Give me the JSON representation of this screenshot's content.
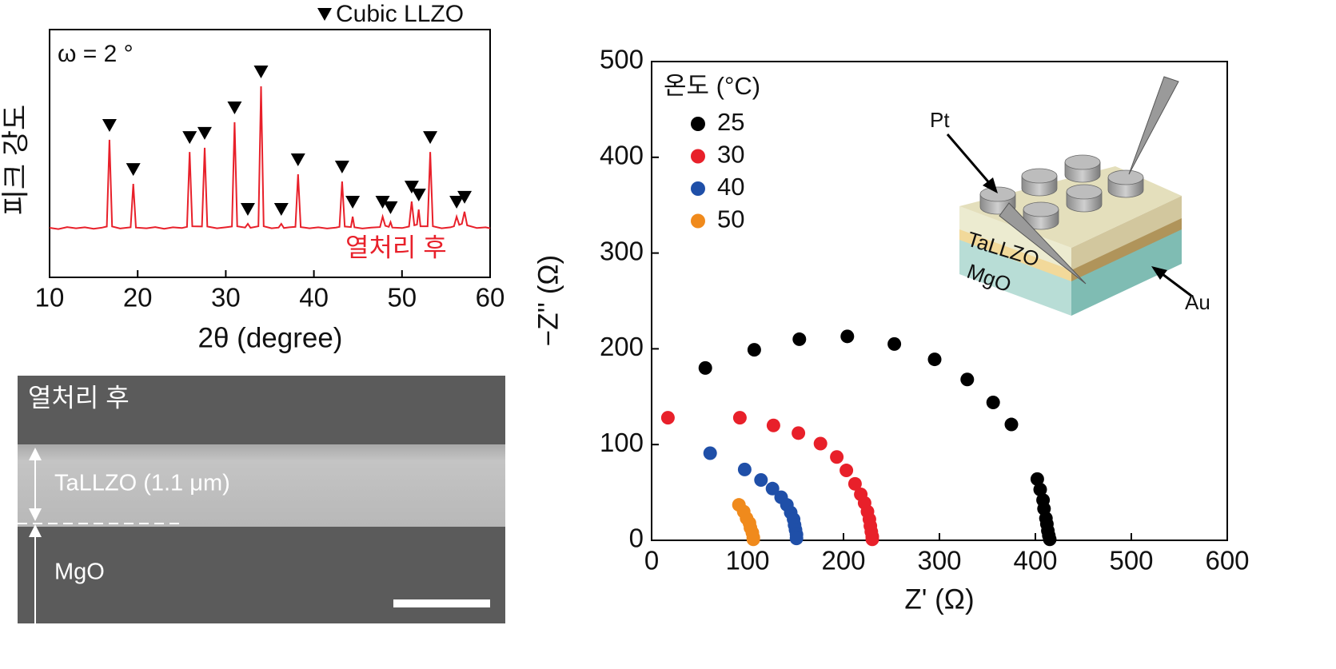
{
  "chart_data": [
    {
      "type": "line",
      "x_label": "2θ (degree)",
      "y_label": "피크 강도",
      "legend": "Cubic LLZO",
      "annotations": [
        "ω = 2 °",
        "열처리 후"
      ],
      "color": "#e8202a",
      "xlim": [
        10,
        60
      ],
      "xticks": [
        10,
        20,
        30,
        40,
        50,
        60
      ],
      "ylim": [
        0,
        100
      ],
      "x": [
        10,
        11,
        12,
        13,
        14,
        15,
        16,
        16.5,
        16.8,
        17.1,
        18,
        19.2,
        19.5,
        19.8,
        21,
        22,
        23,
        24,
        25,
        25.6,
        25.9,
        26.2,
        27.3,
        27.6,
        27.9,
        29,
        30,
        30.7,
        31.0,
        31.3,
        32.2,
        32.5,
        32.8,
        33.7,
        34.0,
        34.3,
        35.2,
        36.0,
        36.3,
        36.6,
        37.2,
        37.9,
        38.2,
        38.5,
        39.5,
        40.5,
        41.5,
        42.5,
        42.9,
        43.2,
        43.5,
        44.2,
        44.4,
        44.6,
        45.5,
        46.5,
        47.5,
        47.8,
        48.1,
        48.5,
        48.7,
        48.9,
        50,
        50.8,
        51.1,
        51.4,
        51.7,
        51.9,
        52.1,
        52.9,
        53.2,
        53.5,
        54.5,
        55.5,
        55.9,
        56.2,
        56.5,
        56.8,
        57.1,
        57.4,
        58.5,
        59.5,
        60
      ],
      "values": [
        20,
        19.5,
        20.3,
        19.8,
        20.2,
        19.6,
        20.1,
        20.5,
        55.5,
        20.5,
        19.7,
        20.2,
        37.7,
        20.1,
        19.8,
        20.3,
        19.6,
        20.2,
        19.9,
        20.4,
        50.6,
        20.6,
        20.5,
        52.3,
        20.5,
        19.8,
        20.2,
        20.5,
        62.6,
        20.6,
        20.1,
        21.6,
        20,
        20.6,
        77.1,
        20.6,
        19.8,
        20.1,
        21.6,
        19.9,
        20.2,
        20.4,
        41.6,
        20.3,
        19.8,
        20.2,
        19.7,
        20.1,
        20.4,
        38.7,
        20.5,
        20.3,
        24.5,
        20.2,
        19.7,
        20.1,
        20.3,
        24.5,
        20.8,
        20.4,
        22.3,
        20.1,
        19.9,
        20.5,
        30.6,
        21,
        21.3,
        27.4,
        20.6,
        20.6,
        50.6,
        20.6,
        19.8,
        20.2,
        20.6,
        24.5,
        21.2,
        21.6,
        26.5,
        21,
        19.9,
        20.2,
        19.8
      ],
      "peak_markers": [
        16.8,
        19.5,
        25.9,
        27.6,
        31.0,
        32.5,
        34.0,
        36.3,
        38.2,
        43.2,
        44.4,
        47.8,
        48.7,
        51.1,
        51.9,
        53.2,
        56.2,
        57.1
      ]
    },
    {
      "type": "scatter",
      "x_label": "Z' (Ω)",
      "y_label": "−Z'' (Ω)",
      "legend_title": "온도 (°C)",
      "annotations": [
        "Pt",
        "TaLLZO",
        "MgO",
        "Au"
      ],
      "xlim": [
        0,
        600
      ],
      "xticks": [
        0,
        100,
        200,
        300,
        400,
        500,
        600
      ],
      "ylim": [
        0,
        500
      ],
      "yticks": [
        0,
        100,
        200,
        300,
        400,
        500
      ],
      "series": [
        {
          "name": "25",
          "color": "#000000",
          "x": [
            56,
            107,
            154,
            204,
            253,
            295,
            329,
            356,
            375,
            402,
            405,
            408,
            409,
            411,
            412,
            413,
            414,
            415
          ],
          "values": [
            180,
            199,
            210,
            213,
            205,
            189,
            168,
            144,
            121,
            64,
            53,
            42,
            33,
            23,
            17,
            10,
            5,
            1
          ]
        },
        {
          "name": "30",
          "color": "#e8202a",
          "x": [
            17,
            92,
            127,
            153,
            176,
            193,
            203,
            212,
            218,
            222,
            225,
            227,
            228,
            229,
            230,
            230
          ],
          "values": [
            128,
            128,
            120,
            112,
            101,
            87,
            73,
            59,
            48,
            39,
            30,
            22,
            15,
            9,
            4,
            1
          ]
        },
        {
          "name": "40",
          "color": "#1f4fa8",
          "x": [
            61,
            97,
            114,
            126,
            135,
            141,
            145,
            148,
            149,
            150,
            151,
            151
          ],
          "values": [
            91,
            74,
            63,
            54,
            45,
            37,
            29,
            22,
            16,
            11,
            6,
            2
          ]
        },
        {
          "name": "50",
          "color": "#f08a1c",
          "x": [
            91,
            96,
            99,
            102,
            103,
            105,
            106,
            106
          ],
          "values": [
            37,
            30,
            23,
            18,
            13,
            8,
            3,
            1
          ]
        }
      ]
    }
  ],
  "image": {
    "label": "열처리 후",
    "layers": [
      "TaLLZO (1.1 μm)",
      "MgO"
    ]
  }
}
